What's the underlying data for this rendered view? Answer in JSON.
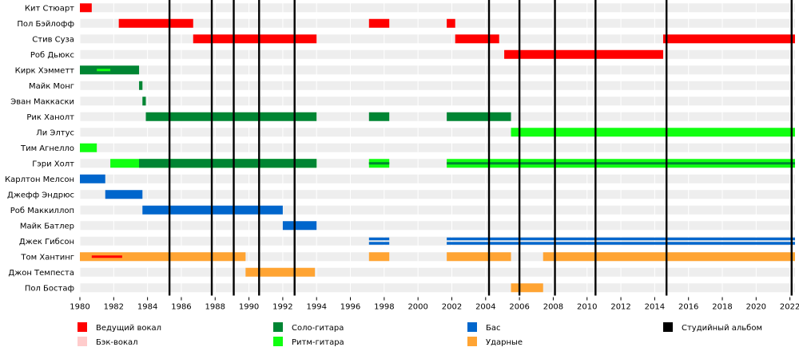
{
  "chart_data": {
    "type": "timeline",
    "title": "",
    "xlabel": "",
    "ylabel": "",
    "x_range": [
      1980,
      2022.3
    ],
    "grid": true,
    "x_ticks": [
      "1980",
      "1982",
      "1984",
      "1986",
      "1988",
      "1990",
      "1992",
      "1994",
      "1996",
      "1998",
      "2000",
      "2002",
      "2004",
      "2006",
      "2008",
      "2010",
      "2012",
      "2014",
      "2016",
      "2018",
      "2020",
      "2022"
    ],
    "members": [
      {
        "name": "Кит Стюарт",
        "bars": [
          {
            "role": "lead_vocals",
            "start": 1980.0,
            "end": 1980.7
          }
        ]
      },
      {
        "name": "Пол Бэйлофф",
        "bars": [
          {
            "role": "lead_vocals",
            "start": 1982.3,
            "end": 1986.7
          },
          {
            "role": "lead_vocals",
            "start": 1997.1,
            "end": 1998.3
          },
          {
            "role": "lead_vocals",
            "start": 2001.7,
            "end": 2002.2
          }
        ]
      },
      {
        "name": "Стив Суза",
        "bars": [
          {
            "role": "lead_vocals",
            "start": 1986.7,
            "end": 1994.0
          },
          {
            "role": "lead_vocals",
            "start": 2002.2,
            "end": 2004.8
          },
          {
            "role": "lead_vocals",
            "start": 2014.5,
            "end": 2022.3
          }
        ]
      },
      {
        "name": "Роб Дьюкс",
        "bars": [
          {
            "role": "lead_vocals",
            "start": 2005.1,
            "end": 2014.5
          }
        ]
      },
      {
        "name": "Кирк Хэмметт",
        "bars": [
          {
            "role": "lead_guitar",
            "start": 1980.0,
            "end": 1983.5
          },
          {
            "role": "rhythm_guitar",
            "start": 1981.0,
            "end": 1981.8,
            "thin": true
          }
        ]
      },
      {
        "name": "Майк Монг",
        "bars": [
          {
            "role": "lead_guitar",
            "start": 1983.5,
            "end": 1983.7
          }
        ]
      },
      {
        "name": "Эван Маккаски",
        "bars": [
          {
            "role": "lead_guitar",
            "start": 1983.7,
            "end": 1983.9
          }
        ]
      },
      {
        "name": "Рик Ханолт",
        "bars": [
          {
            "role": "lead_guitar",
            "start": 1983.9,
            "end": 1994.0
          },
          {
            "role": "lead_guitar",
            "start": 1997.1,
            "end": 1998.3
          },
          {
            "role": "lead_guitar",
            "start": 2001.7,
            "end": 2005.5
          }
        ]
      },
      {
        "name": "Ли Элтус",
        "bars": [
          {
            "role": "lead_guitar",
            "start": 2005.5,
            "end": 2022.3
          },
          {
            "role": "rhythm_guitar",
            "start": 2005.5,
            "end": 2022.3
          }
        ]
      },
      {
        "name": "Тим Агнелло",
        "bars": [
          {
            "role": "rhythm_guitar",
            "start": 1980.0,
            "end": 1981.0
          }
        ]
      },
      {
        "name": "Гэри Холт",
        "bars": [
          {
            "role": "rhythm_guitar",
            "start": 1981.8,
            "end": 1994.0
          },
          {
            "role": "lead_guitar",
            "start": 1983.5,
            "end": 1994.0
          },
          {
            "role": "rhythm_guitar",
            "start": 1997.1,
            "end": 1998.3
          },
          {
            "role": "lead_guitar",
            "start": 1997.1,
            "end": 1998.3
          },
          {
            "role": "rhythm_guitar",
            "start": 2001.7,
            "end": 2022.3
          },
          {
            "role": "lead_guitar",
            "start": 2001.7,
            "end": 2022.3
          }
        ]
      },
      {
        "name": "Карлтон Мелсон",
        "bars": [
          {
            "role": "bass",
            "start": 1980.0,
            "end": 1981.5
          }
        ]
      },
      {
        "name": "Джефф Эндрюс",
        "bars": [
          {
            "role": "bass",
            "start": 1981.5,
            "end": 1983.7
          }
        ]
      },
      {
        "name": "Роб Маккиллоп",
        "bars": [
          {
            "role": "bass",
            "start": 1983.7,
            "end": 1992.0
          }
        ]
      },
      {
        "name": "Майк Батлер",
        "bars": [
          {
            "role": "bass",
            "start": 1992.0,
            "end": 1994.0
          }
        ]
      },
      {
        "name": "Джек Гибсон",
        "bars": [
          {
            "role": "bass",
            "start": 1997.1,
            "end": 1998.3,
            "split": true
          },
          {
            "role": "bass",
            "start": 2001.7,
            "end": 2022.3,
            "split": true
          }
        ]
      },
      {
        "name": "Том Хантинг",
        "bars": [
          {
            "role": "drums",
            "start": 1980.0,
            "end": 1989.8
          },
          {
            "role": "lead_vocals",
            "start": 1980.7,
            "end": 1982.5,
            "thin": true
          },
          {
            "role": "drums",
            "start": 1997.1,
            "end": 1998.3
          },
          {
            "role": "drums",
            "start": 2001.7,
            "end": 2005.5
          },
          {
            "role": "drums",
            "start": 2007.4,
            "end": 2022.3
          }
        ]
      },
      {
        "name": "Джон Темпеста",
        "bars": [
          {
            "role": "drums",
            "start": 1989.8,
            "end": 1993.9
          }
        ]
      },
      {
        "name": "Пол Бостаф",
        "bars": [
          {
            "role": "drums",
            "start": 2005.5,
            "end": 2007.4
          }
        ]
      }
    ],
    "albums": [
      1985.3,
      1987.8,
      1989.1,
      1990.6,
      1992.7,
      2004.2,
      2006.0,
      2008.1,
      2010.5,
      2014.7,
      2022.1
    ],
    "roles": {
      "lead_vocals": {
        "label": "Ведущий вокал",
        "color": "#ff0000"
      },
      "backing_vocals": {
        "label": "Бэк-вокал",
        "color": "#ffcccc"
      },
      "lead_guitar": {
        "label": "Соло-гитара",
        "color": "#008533"
      },
      "rhythm_guitar": {
        "label": "Ритм-гитара",
        "color": "#11ff11"
      },
      "bass": {
        "label": "Бас",
        "color": "#0066cc"
      },
      "drums": {
        "label": "Ударные",
        "color": "#ffa433"
      },
      "album": {
        "label": "Студийный альбом",
        "color": "#000000"
      }
    },
    "legend_order": [
      "lead_vocals",
      "backing_vocals",
      "lead_guitar",
      "rhythm_guitar",
      "bass",
      "drums",
      "album"
    ],
    "legend_position": "bottom"
  }
}
